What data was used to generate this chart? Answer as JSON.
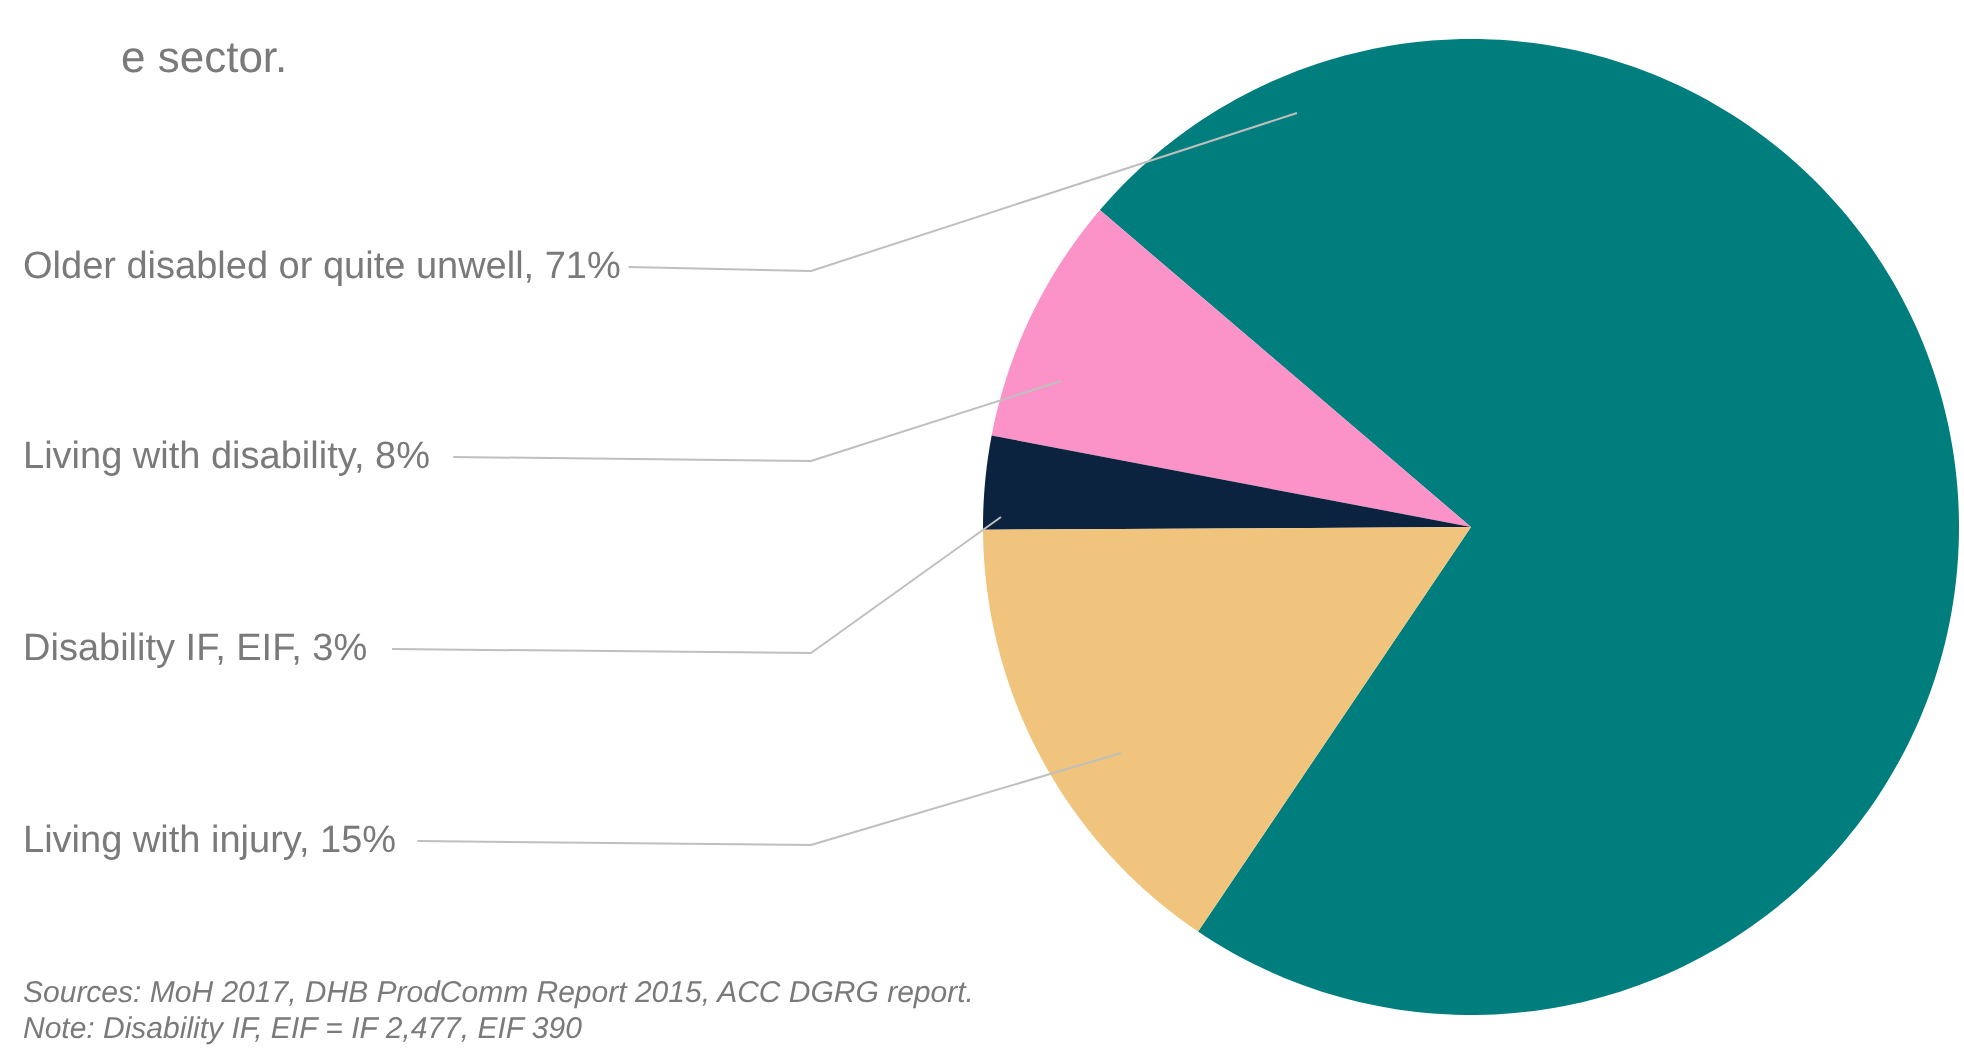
{
  "chart_data": {
    "type": "pie",
    "title": "e sector.",
    "categories": [
      "Older disabled or quite unwell, 71%",
      "Living with disability, 8%",
      "Disability IF, EIF, 3%",
      "Living with injury, 15%"
    ],
    "values": [
      71,
      8,
      3,
      15
    ],
    "colors": [
      "#007d7d",
      "#fc93c8",
      "#0c2340",
      "#f0c47c"
    ],
    "annotations": [
      "Sources: MoH 2017, DHB ProdComm Report 2015, ACC DGRG report.",
      "Note: Disability IF, EIF = IF 2,477, EIF 390"
    ]
  }
}
